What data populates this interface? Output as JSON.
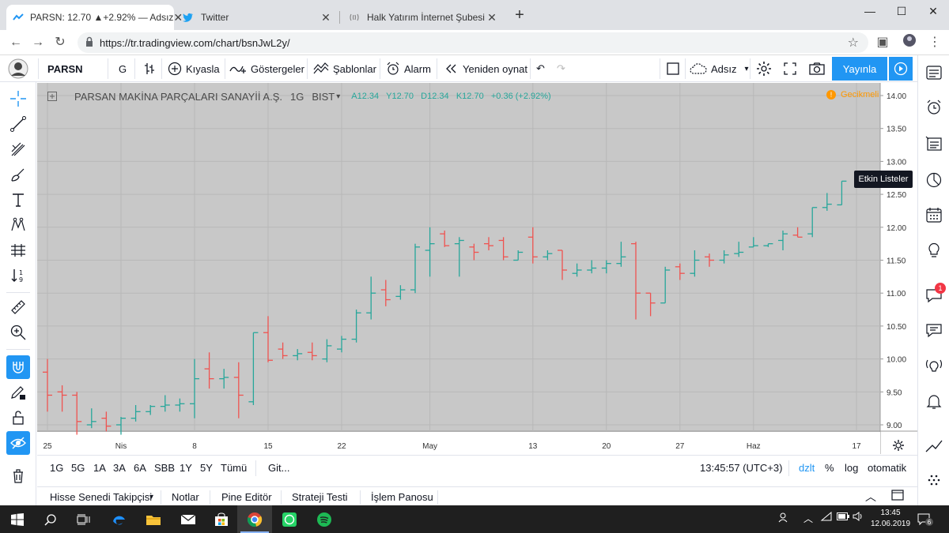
{
  "browser": {
    "tabs": [
      {
        "title": "PARSN: 12.70 ▲+2.92% — Adsız",
        "active": true
      },
      {
        "title": "Twitter",
        "active": false
      },
      {
        "title": "Halk Yatırım İnternet Şubesi",
        "active": false
      }
    ],
    "url": "https://tr.tradingview.com/chart/bsnJwL2y/"
  },
  "toolbar": {
    "symbol": "PARSN",
    "interval": "G",
    "compare": "Kıyasla",
    "indicators": "Göstergeler",
    "templates": "Şablonlar",
    "alarm": "Alarm",
    "replay": "Yeniden oynat",
    "layout_name": "Adsız",
    "publish": "Yayınla"
  },
  "legend": {
    "symbol_name": "PARSAN MAKİNA PARÇALARI SANAYİİ A.Ş.",
    "interval": "1G",
    "exchange": "BIST",
    "open_label": "A",
    "open": "12.34",
    "high_label": "Y",
    "high": "12.70",
    "low_label": "D",
    "low": "12.34",
    "close_label": "K",
    "close": "12.70",
    "change": "+0.36 (+2.92%)",
    "delayed": "Gecikmeli",
    "delayed_badge": "!"
  },
  "sidebar": {
    "tooltip": "Etkin Listeler",
    "badge": "1"
  },
  "range_bar": {
    "ranges": [
      "1G",
      "5G",
      "1A",
      "3A",
      "6A",
      "SBB",
      "1Y",
      "5Y",
      "Tümü"
    ],
    "goto": "Git...",
    "time": "13:45:57 (UTC+3)",
    "adj": "dzlt",
    "pct": "%",
    "log": "log",
    "auto": "otomatik"
  },
  "panel_tabs": [
    "Hisse Senedi Takipçisi",
    "Notlar",
    "Pine Editör",
    "Strateji Testi",
    "İşlem Panosu"
  ],
  "taskbar": {
    "time": "13:45",
    "date": "12.06.2019",
    "notif_count": "6"
  },
  "colors": {
    "up": "#26a69a",
    "down": "#ef5350",
    "chart_bg": "#c8c8c8",
    "accent": "#2196f3"
  },
  "chart_data": {
    "type": "ohlc",
    "y_ticks": [
      9.0,
      9.5,
      10.0,
      10.5,
      11.0,
      11.5,
      12.0,
      12.5,
      13.0,
      13.5,
      14.0
    ],
    "ylim": [
      8.8,
      14.1
    ],
    "x_ticks": [
      {
        "i": 0,
        "label": "25"
      },
      {
        "i": 5,
        "label": "Nis"
      },
      {
        "i": 10,
        "label": "8"
      },
      {
        "i": 15,
        "label": "15"
      },
      {
        "i": 20,
        "label": "22"
      },
      {
        "i": 26,
        "label": "May"
      },
      {
        "i": 33,
        "label": "13"
      },
      {
        "i": 38,
        "label": "20"
      },
      {
        "i": 43,
        "label": "27"
      },
      {
        "i": 48,
        "label": "Haz"
      },
      {
        "i": 55,
        "label": "17"
      }
    ],
    "bars": [
      {
        "o": 9.8,
        "h": 10.0,
        "l": 9.2,
        "c": 9.45
      },
      {
        "o": 9.5,
        "h": 9.6,
        "l": 9.2,
        "c": 9.45
      },
      {
        "o": 9.45,
        "h": 9.5,
        "l": 8.85,
        "c": 9.05
      },
      {
        "o": 9.0,
        "h": 9.25,
        "l": 8.95,
        "c": 9.05
      },
      {
        "o": 9.1,
        "h": 9.2,
        "l": 8.9,
        "c": 8.98
      },
      {
        "o": 9.0,
        "h": 9.12,
        "l": 8.85,
        "c": 9.1
      },
      {
        "o": 9.1,
        "h": 9.3,
        "l": 9.05,
        "c": 9.2
      },
      {
        "o": 9.2,
        "h": 9.3,
        "l": 9.15,
        "c": 9.28
      },
      {
        "o": 9.28,
        "h": 9.45,
        "l": 9.2,
        "c": 9.3
      },
      {
        "o": 9.3,
        "h": 9.4,
        "l": 9.2,
        "c": 9.32
      },
      {
        "o": 9.32,
        "h": 10.0,
        "l": 9.1,
        "c": 9.7
      },
      {
        "o": 9.85,
        "h": 10.1,
        "l": 9.55,
        "c": 9.7
      },
      {
        "o": 9.7,
        "h": 9.85,
        "l": 9.55,
        "c": 9.72
      },
      {
        "o": 9.72,
        "h": 9.95,
        "l": 9.1,
        "c": 9.45
      },
      {
        "o": 9.35,
        "h": 10.4,
        "l": 9.3,
        "c": 10.4
      },
      {
        "o": 10.4,
        "h": 10.65,
        "l": 9.95,
        "c": 9.98
      },
      {
        "o": 10.15,
        "h": 10.25,
        "l": 10.0,
        "c": 10.05
      },
      {
        "o": 10.05,
        "h": 10.15,
        "l": 9.98,
        "c": 10.08
      },
      {
        "o": 10.1,
        "h": 10.25,
        "l": 9.98,
        "c": 10.05
      },
      {
        "o": 10.0,
        "h": 10.3,
        "l": 9.95,
        "c": 10.2
      },
      {
        "o": 10.15,
        "h": 10.35,
        "l": 10.1,
        "c": 10.3
      },
      {
        "o": 10.3,
        "h": 10.75,
        "l": 10.25,
        "c": 10.7
      },
      {
        "o": 10.7,
        "h": 11.25,
        "l": 10.6,
        "c": 11.0
      },
      {
        "o": 11.05,
        "h": 11.2,
        "l": 10.8,
        "c": 10.9
      },
      {
        "o": 10.95,
        "h": 11.12,
        "l": 10.9,
        "c": 11.05
      },
      {
        "o": 11.05,
        "h": 11.75,
        "l": 11.0,
        "c": 11.7
      },
      {
        "o": 11.65,
        "h": 12.0,
        "l": 11.25,
        "c": 11.75
      },
      {
        "o": 11.9,
        "h": 11.95,
        "l": 11.7,
        "c": 11.72
      },
      {
        "o": 11.75,
        "h": 11.85,
        "l": 11.25,
        "c": 11.8
      },
      {
        "o": 11.7,
        "h": 11.75,
        "l": 11.5,
        "c": 11.62
      },
      {
        "o": 11.75,
        "h": 11.85,
        "l": 11.65,
        "c": 11.72
      },
      {
        "o": 11.8,
        "h": 11.85,
        "l": 11.5,
        "c": 11.55
      },
      {
        "o": 11.5,
        "h": 11.65,
        "l": 11.5,
        "c": 11.62
      },
      {
        "o": 11.85,
        "h": 12.0,
        "l": 11.45,
        "c": 11.55
      },
      {
        "o": 11.55,
        "h": 11.65,
        "l": 11.5,
        "c": 11.6
      },
      {
        "o": 11.65,
        "h": 11.65,
        "l": 11.2,
        "c": 11.35
      },
      {
        "o": 11.3,
        "h": 11.45,
        "l": 11.25,
        "c": 11.35
      },
      {
        "o": 11.35,
        "h": 11.5,
        "l": 11.3,
        "c": 11.38
      },
      {
        "o": 11.38,
        "h": 11.5,
        "l": 11.3,
        "c": 11.45
      },
      {
        "o": 11.45,
        "h": 11.78,
        "l": 11.4,
        "c": 11.55
      },
      {
        "o": 11.75,
        "h": 11.78,
        "l": 10.6,
        "c": 11.0
      },
      {
        "o": 11.0,
        "h": 11.0,
        "l": 10.65,
        "c": 10.85
      },
      {
        "o": 10.85,
        "h": 11.4,
        "l": 10.85,
        "c": 11.35
      },
      {
        "o": 11.4,
        "h": 11.45,
        "l": 11.2,
        "c": 11.3
      },
      {
        "o": 11.3,
        "h": 11.65,
        "l": 11.25,
        "c": 11.5
      },
      {
        "o": 11.55,
        "h": 11.6,
        "l": 11.4,
        "c": 11.5
      },
      {
        "o": 11.5,
        "h": 11.65,
        "l": 11.45,
        "c": 11.58
      },
      {
        "o": 11.6,
        "h": 11.78,
        "l": 11.55,
        "c": 11.62
      },
      {
        "o": 11.7,
        "h": 11.85,
        "l": 11.7,
        "c": 11.72
      },
      {
        "o": 11.72,
        "h": 11.75,
        "l": 11.7,
        "c": 11.75
      },
      {
        "o": 11.8,
        "h": 11.95,
        "l": 11.65,
        "c": 11.9
      },
      {
        "o": 11.88,
        "h": 12.0,
        "l": 11.85,
        "c": 11.85
      },
      {
        "o": 11.9,
        "h": 12.3,
        "l": 11.85,
        "c": 12.3
      },
      {
        "o": 12.3,
        "h": 12.52,
        "l": 12.25,
        "c": 12.35
      },
      {
        "o": 12.34,
        "h": 12.7,
        "l": 12.34,
        "c": 12.7
      }
    ]
  }
}
